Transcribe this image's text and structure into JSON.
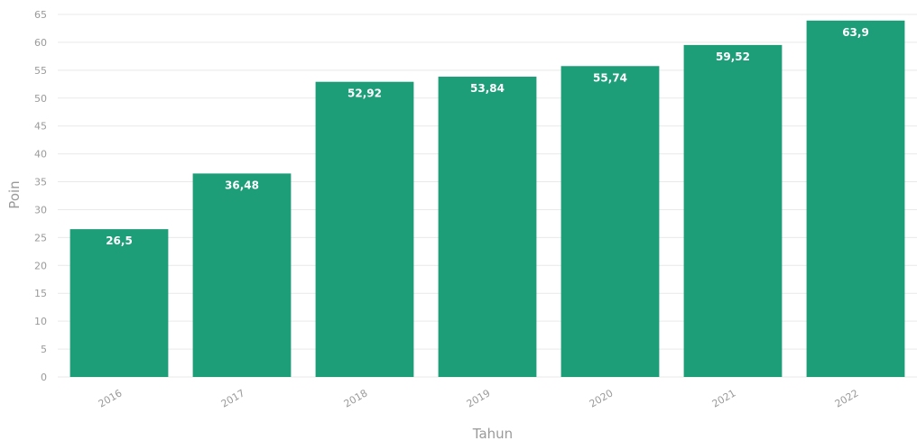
{
  "chart_data": {
    "type": "bar",
    "categories": [
      "2016",
      "2017",
      "2018",
      "2019",
      "2020",
      "2021",
      "2022"
    ],
    "values": [
      26.5,
      36.48,
      52.92,
      53.84,
      55.74,
      59.52,
      63.9
    ],
    "value_labels": [
      "26,5",
      "36,48",
      "52,92",
      "53,84",
      "55,74",
      "59,52",
      "63,9"
    ],
    "title": "",
    "xlabel": "Tahun",
    "ylabel": "Poin",
    "ylim": [
      0,
      65
    ],
    "yticks": [
      0,
      5,
      10,
      15,
      20,
      25,
      30,
      35,
      40,
      45,
      50,
      55,
      60,
      65
    ],
    "grid": true,
    "bar_color": "#1e9e78"
  }
}
